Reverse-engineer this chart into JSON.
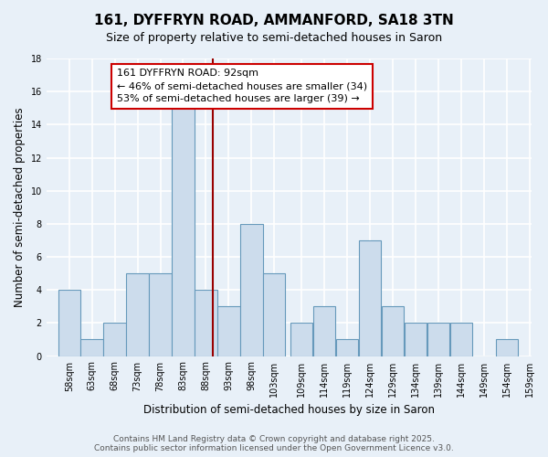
{
  "title": "161, DYFFRYN ROAD, AMMANFORD, SA18 3TN",
  "subtitle": "Size of property relative to semi-detached houses in Saron",
  "xlabel": "Distribution of semi-detached houses by size in Saron",
  "ylabel": "Number of semi-detached properties",
  "bin_labels": [
    "58sqm",
    "63sqm",
    "68sqm",
    "73sqm",
    "78sqm",
    "83sqm",
    "88sqm",
    "93sqm",
    "98sqm",
    "103sqm",
    "109sqm",
    "114sqm",
    "119sqm",
    "124sqm",
    "129sqm",
    "134sqm",
    "139sqm",
    "144sqm",
    "149sqm",
    "154sqm",
    "159sqm"
  ],
  "bin_left_edges": [
    58,
    63,
    68,
    73,
    78,
    83,
    88,
    93,
    98,
    103,
    109,
    114,
    119,
    124,
    129,
    134,
    139,
    144,
    149,
    154
  ],
  "bin_width": 5,
  "counts": [
    4,
    1,
    2,
    5,
    5,
    15,
    4,
    3,
    8,
    5,
    2,
    3,
    1,
    7,
    3,
    2,
    2,
    2,
    0,
    1
  ],
  "bar_color": "#ccdcec",
  "bar_edge_color": "#6699bb",
  "vline_x": 92,
  "vline_color": "#990000",
  "annotation_line1": "161 DYFFRYN ROAD: 92sqm",
  "annotation_line2": "← 46% of semi-detached houses are smaller (34)",
  "annotation_line3": "53% of semi-detached houses are larger (39) →",
  "annotation_box_color": "#ffffff",
  "annotation_box_edge": "#cc0000",
  "ylim": [
    0,
    18
  ],
  "yticks": [
    0,
    2,
    4,
    6,
    8,
    10,
    12,
    14,
    16,
    18
  ],
  "xlim_left": 55.5,
  "xlim_right": 162,
  "bg_color": "#e8f0f8",
  "plot_bg_color": "#e8f0f8",
  "grid_color": "#ffffff",
  "footer_text": "Contains HM Land Registry data © Crown copyright and database right 2025.\nContains public sector information licensed under the Open Government Licence v3.0.",
  "title_fontsize": 11,
  "subtitle_fontsize": 9,
  "axis_label_fontsize": 8.5,
  "tick_fontsize": 7,
  "annotation_fontsize": 8,
  "footer_fontsize": 6.5
}
